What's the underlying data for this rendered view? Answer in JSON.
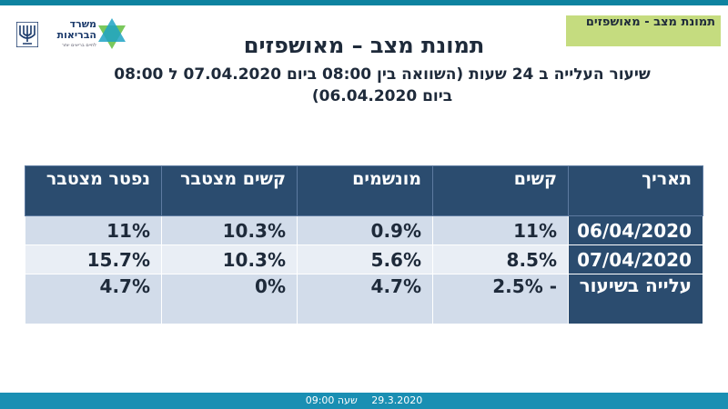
{
  "colors": {
    "header_fill": "#2b4c6f",
    "row_light": "#e9eef5",
    "row_mid": "#d2dcea",
    "section_label_bg": "#c5dc7f",
    "bottom_bar": "#1a8fb3"
  },
  "logo": {
    "ministry_name": "משרד הבריאות",
    "tagline": "לחיים בריאים יותר",
    "icon": "star-logo-icon",
    "emblem": "menorah-emblem-icon"
  },
  "section_label": "תמונת מצב - מאושפזים",
  "title": "תמונת מצב – מאושפזים",
  "subtitle": "שיעור העלייה ב 24 שעות (השוואה בין 08:00 ביום 07.04.2020 ל 08:00 ביום 06.04.2020)",
  "table": {
    "headers": [
      "תאריך",
      "קשים",
      "מונשמים",
      "קשים מצטבר",
      "נפטר מצטבר"
    ],
    "rows": [
      {
        "label": "06/04/2020",
        "values": [
          "11%",
          "0.9%",
          "10.3%",
          "11%"
        ]
      },
      {
        "label": "07/04/2020",
        "values": [
          "8.5%",
          "5.6%",
          "10.3%",
          "15.7%"
        ]
      },
      {
        "label": "עלייה בשיעור",
        "values": [
          "- 2.5%",
          "4.7%",
          "0%",
          "4.7%"
        ]
      }
    ]
  },
  "footer": {
    "date": "29.3.2020",
    "time": "שעה 09:00"
  }
}
